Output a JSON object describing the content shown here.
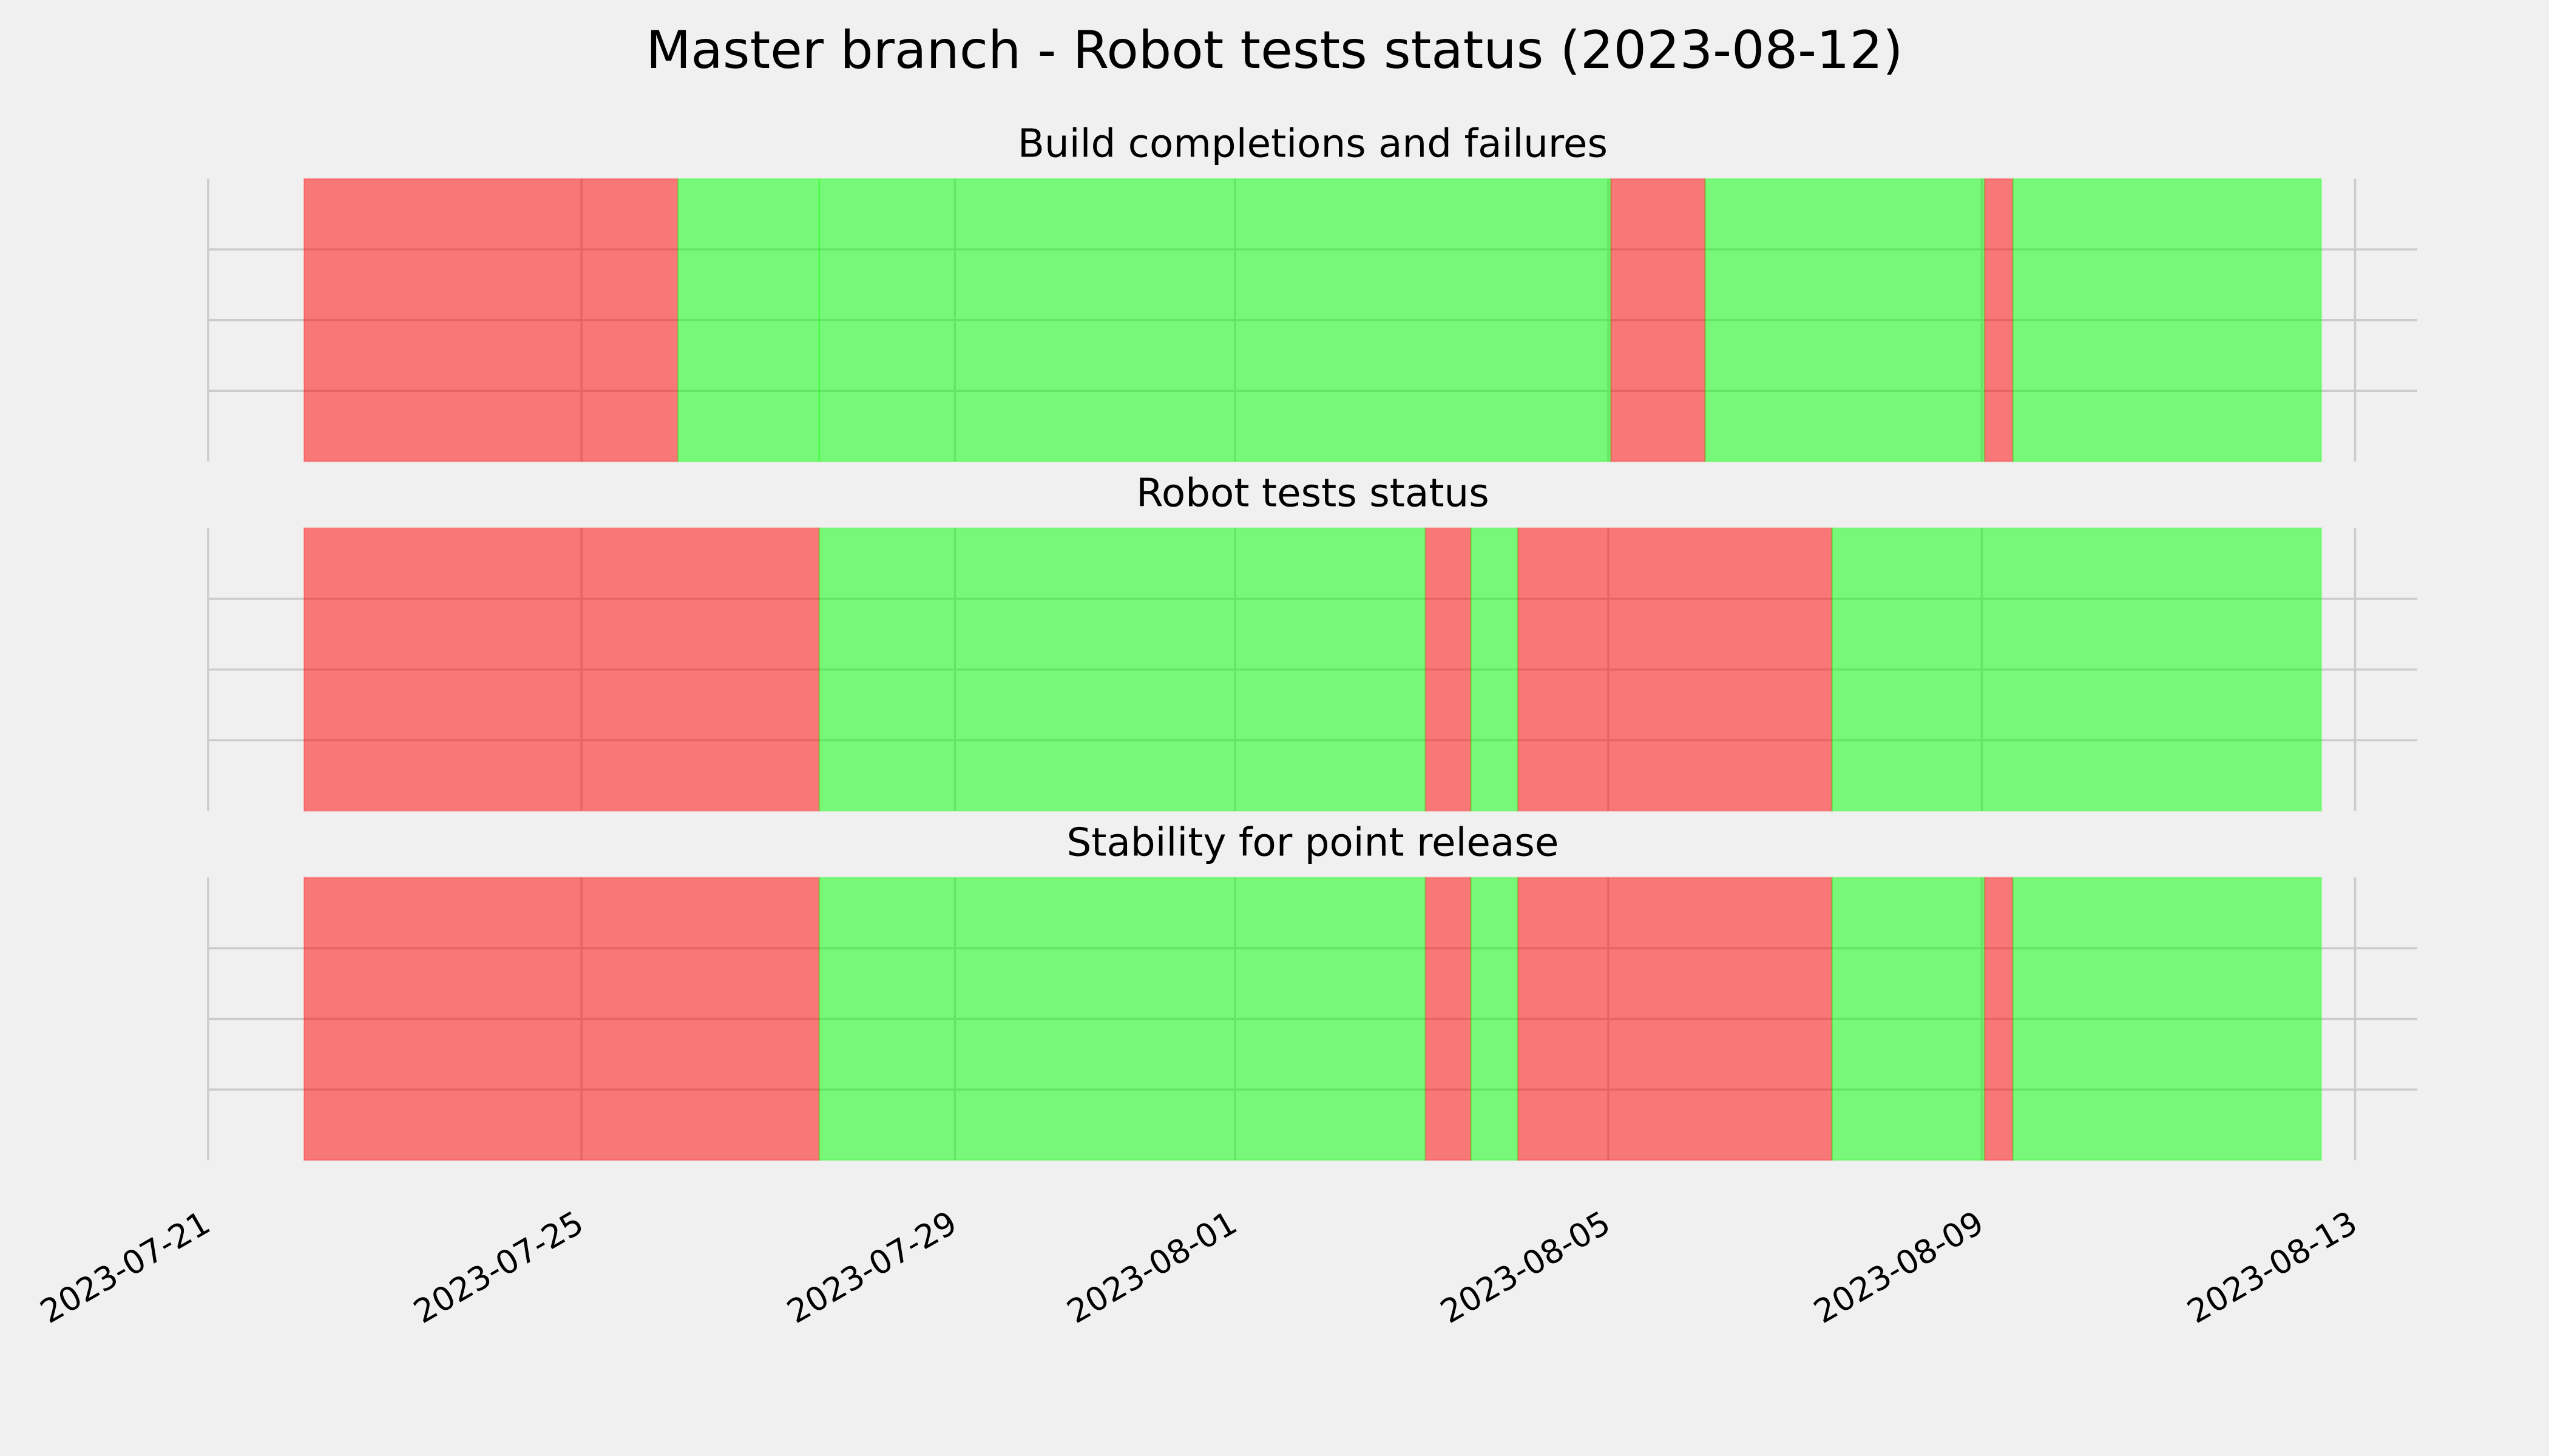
{
  "chart_data": {
    "type": "timeline",
    "title": "Master branch - Robot tests status (2023-08-12)",
    "xlim": [
      "2023-07-21T00:00",
      "2023-08-13T16:00"
    ],
    "xticks": [
      "2023-07-21",
      "2023-07-25",
      "2023-07-29",
      "2023-08-01",
      "2023-08-05",
      "2023-08-09",
      "2023-08-13"
    ],
    "ylim": [
      0,
      1
    ],
    "yticks": [
      0.25,
      0.5,
      0.75
    ],
    "grid": true,
    "opacity": 0.5,
    "panels": [
      {
        "title": "Build completions and failures",
        "spans": [
          {
            "start": "2023-07-22T00:40",
            "end": "2023-07-26T00:45",
            "color": "#ff0000"
          },
          {
            "start": "2023-07-26T00:45",
            "end": "2023-07-27T13:08",
            "color": "#00ff00"
          },
          {
            "start": "2023-07-27T13:08",
            "end": "2023-08-05T00:40",
            "color": "#00ff00"
          },
          {
            "start": "2023-08-05T00:40",
            "end": "2023-08-06T00:55",
            "color": "#ff0000"
          },
          {
            "start": "2023-08-06T00:55",
            "end": "2023-08-09T00:45",
            "color": "#00ff00"
          },
          {
            "start": "2023-08-09T00:45",
            "end": "2023-08-09T08:00",
            "color": "#ff0000"
          },
          {
            "start": "2023-08-09T08:00",
            "end": "2023-08-12T15:20",
            "color": "#00ff00"
          }
        ]
      },
      {
        "title": "Robot tests status",
        "spans": [
          {
            "start": "2023-07-22T00:40",
            "end": "2023-07-27T13:08",
            "color": "#ff0000"
          },
          {
            "start": "2023-07-27T13:08",
            "end": "2023-08-03T01:00",
            "color": "#00ff00"
          },
          {
            "start": "2023-08-03T01:00",
            "end": "2023-08-03T12:40",
            "color": "#ff0000"
          },
          {
            "start": "2023-08-03T12:40",
            "end": "2023-08-04T00:45",
            "color": "#00ff00"
          },
          {
            "start": "2023-08-04T00:45",
            "end": "2023-08-07T09:30",
            "color": "#ff0000"
          },
          {
            "start": "2023-08-07T09:30",
            "end": "2023-08-12T15:20",
            "color": "#00ff00"
          }
        ]
      },
      {
        "title": "Stability for point release",
        "spans": [
          {
            "start": "2023-07-22T00:40",
            "end": "2023-07-27T13:08",
            "color": "#ff0000"
          },
          {
            "start": "2023-07-27T13:08",
            "end": "2023-08-03T01:00",
            "color": "#00ff00"
          },
          {
            "start": "2023-08-03T01:00",
            "end": "2023-08-03T12:40",
            "color": "#ff0000"
          },
          {
            "start": "2023-08-03T12:40",
            "end": "2023-08-04T00:45",
            "color": "#00ff00"
          },
          {
            "start": "2023-08-04T00:45",
            "end": "2023-08-07T09:30",
            "color": "#ff0000"
          },
          {
            "start": "2023-08-07T09:30",
            "end": "2023-08-09T00:45",
            "color": "#00ff00"
          },
          {
            "start": "2023-08-09T00:45",
            "end": "2023-08-09T08:00",
            "color": "#ff0000"
          },
          {
            "start": "2023-08-09T08:00",
            "end": "2023-08-12T15:20",
            "color": "#00ff00"
          }
        ]
      }
    ]
  }
}
